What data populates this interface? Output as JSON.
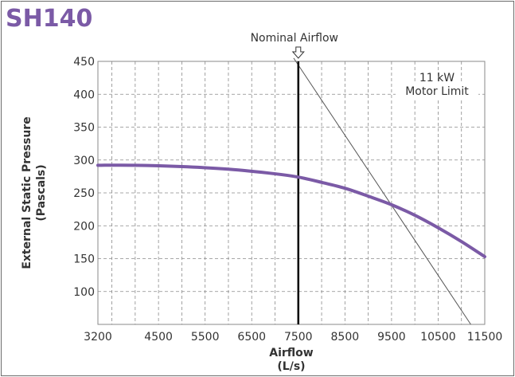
{
  "title": "SH140",
  "colors": {
    "title": "#7b5aa6",
    "curve": "#7b5aa6",
    "grid": "#8a8a8a",
    "nominal_line": "#000000",
    "motor_limit_line": "#555555"
  },
  "chart_data": {
    "type": "line",
    "title": "",
    "xlabel": "Airflow\n(L/s)",
    "xlabel_lines": [
      "Airflow",
      "(L/s)"
    ],
    "ylabel": "External Static Pressure\n(Pascals)",
    "ylabel_lines": [
      "External Static Pressure",
      "(Pascals)"
    ],
    "xlim": [
      3200,
      11500
    ],
    "ylim": [
      50,
      450
    ],
    "x_ticks": [
      3200,
      4500,
      5500,
      6500,
      7500,
      8500,
      9500,
      10500,
      11500
    ],
    "y_ticks": [
      100,
      150,
      200,
      250,
      300,
      350,
      400,
      450
    ],
    "grid": true,
    "series": [
      {
        "type": "fan-curve",
        "x": [
          3200,
          4000,
          5000,
          6000,
          7000,
          7500,
          8000,
          8500,
          9000,
          9500,
          10000,
          10500,
          11000,
          11500
        ],
        "y": [
          292,
          292,
          290,
          286,
          279,
          274,
          266,
          257,
          245,
          232,
          216,
          197,
          176,
          153
        ]
      },
      {
        "type": "motor-limit",
        "x": [
          7400,
          11200
        ],
        "y": [
          455,
          50
        ]
      }
    ],
    "annotations": {
      "nominal_airflow": {
        "label": "Nominal Airflow",
        "x": 7500
      },
      "motor_limit": {
        "label_lines": [
          "11 kW",
          "Motor Limit"
        ]
      }
    }
  }
}
